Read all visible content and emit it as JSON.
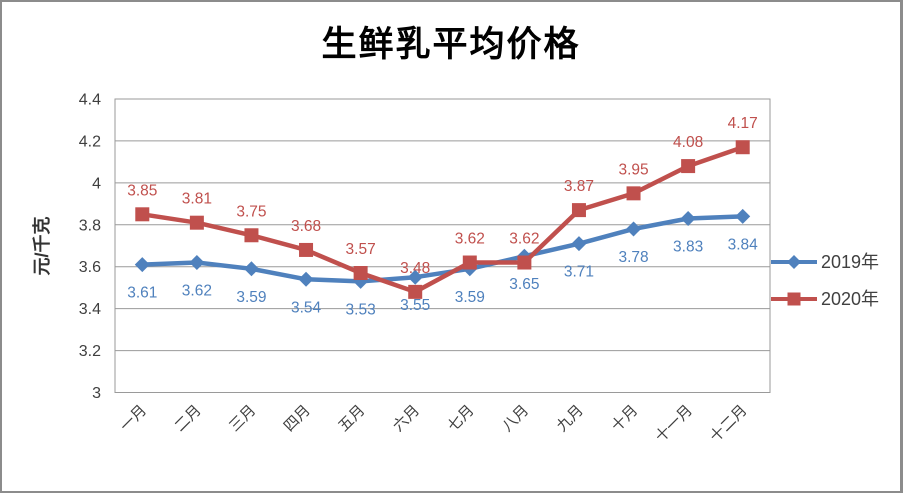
{
  "chart_data": {
    "type": "line",
    "title": "生鲜乳平均价格",
    "ylabel": "元/千克",
    "xlabel": "",
    "categories": [
      "一月",
      "二月",
      "三月",
      "四月",
      "五月",
      "六月",
      "七月",
      "八月",
      "九月",
      "十月",
      "十一月",
      "十二月"
    ],
    "series": [
      {
        "name": "2019年",
        "color": "#4f81bd",
        "marker": "diamond",
        "label_position": "below",
        "values": [
          3.61,
          3.62,
          3.59,
          3.54,
          3.53,
          3.55,
          3.59,
          3.65,
          3.71,
          3.78,
          3.83,
          3.84
        ]
      },
      {
        "name": "2020年",
        "color": "#c0504d",
        "marker": "square",
        "label_position": "above",
        "values": [
          3.85,
          3.81,
          3.75,
          3.68,
          3.57,
          3.48,
          3.62,
          3.62,
          3.87,
          3.95,
          4.08,
          4.17
        ]
      }
    ],
    "ylim": [
      3,
      4.4
    ],
    "yticks": [
      {
        "v": 3,
        "label": "3"
      },
      {
        "v": 3.2,
        "label": "3.2"
      },
      {
        "v": 3.4,
        "label": "3.4"
      },
      {
        "v": 3.6,
        "label": "3.6"
      },
      {
        "v": 3.8,
        "label": "3.8"
      },
      {
        "v": 4,
        "label": "4"
      },
      {
        "v": 4.2,
        "label": "4.2"
      },
      {
        "v": 4.4,
        "label": "4.4"
      }
    ],
    "grid": true,
    "legend_position": "right",
    "colors": {
      "gridline": "#9a9a9a",
      "plot_border": "#9a9a9a",
      "axis_text": "#3f3f3f",
      "legend_text": "#404040",
      "frame_border": "#8c8c8c",
      "background": "#ffffff",
      "title_text": "#000000"
    }
  }
}
